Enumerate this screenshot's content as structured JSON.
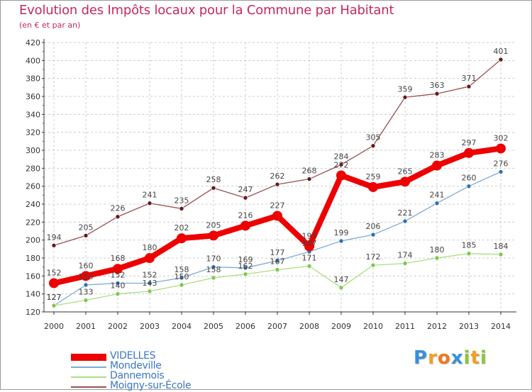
{
  "title": "Evolution des Impôts locaux pour la Commune par Habitant",
  "subtitle": "(en € et par an)",
  "chart_data": {
    "type": "line",
    "categories": [
      "2000",
      "2001",
      "2002",
      "2003",
      "2004",
      "2005",
      "2006",
      "2007",
      "2008",
      "2009",
      "2010",
      "2011",
      "2012",
      "2013",
      "2014"
    ],
    "ylim": [
      120,
      420
    ],
    "yticks": [
      120,
      140,
      160,
      180,
      200,
      220,
      240,
      260,
      280,
      300,
      320,
      340,
      360,
      380,
      400,
      420
    ],
    "series": [
      {
        "name": "VIDELLES",
        "color": "#ee0000",
        "width": 8,
        "point_color": "#ee0000",
        "label_color": "#444444",
        "values": [
          152,
          160,
          168,
          180,
          202,
          205,
          216,
          227,
          193,
          272,
          259,
          265,
          283,
          297,
          302
        ],
        "labels": [
          "152",
          "160",
          "168",
          "180",
          "202",
          "205",
          "216",
          "227",
          "193",
          "272",
          "259",
          "265",
          "283",
          "297",
          "302"
        ]
      },
      {
        "name": "Mondeville",
        "color": "#7fa9d6",
        "width": 1.3,
        "point_color": "#2e6fb2",
        "label_color": "#444444",
        "values": [
          127,
          150,
          152,
          152,
          158,
          170,
          169,
          177,
          187,
          199,
          206,
          221,
          241,
          260,
          276
        ],
        "labels": [
          "127",
          "150",
          "152",
          "152",
          "158",
          "170",
          "169",
          "177",
          "187",
          "199",
          "206",
          "221",
          "241",
          "260",
          "276"
        ]
      },
      {
        "name": "Dannemois",
        "color": "#a8e080",
        "width": 1.3,
        "point_color": "#7cc84a",
        "label_color": "#444444",
        "values": [
          127,
          133,
          140,
          143,
          150,
          158,
          162,
          167,
          171,
          147,
          172,
          174,
          180,
          185,
          184
        ],
        "labels": [
          "127",
          "133",
          "140",
          "143",
          "150",
          "158",
          "162",
          "167",
          "171",
          "147",
          "172",
          "174",
          "180",
          "185",
          "184"
        ]
      },
      {
        "name": "Moigny-sur-École",
        "color": "#9a5050",
        "width": 1.3,
        "point_color": "#6a1818",
        "label_color": "#444444",
        "values": [
          194,
          205,
          226,
          241,
          235,
          258,
          247,
          262,
          268,
          284,
          305,
          359,
          363,
          371,
          401
        ],
        "labels": [
          "194",
          "205",
          "226",
          "241",
          "235",
          "258",
          "247",
          "262",
          "268",
          "284",
          "305",
          "359",
          "363",
          "371",
          "401"
        ]
      }
    ]
  },
  "logo": {
    "letters": [
      "P",
      "r",
      "o",
      "x",
      "i",
      "t",
      "i"
    ]
  }
}
